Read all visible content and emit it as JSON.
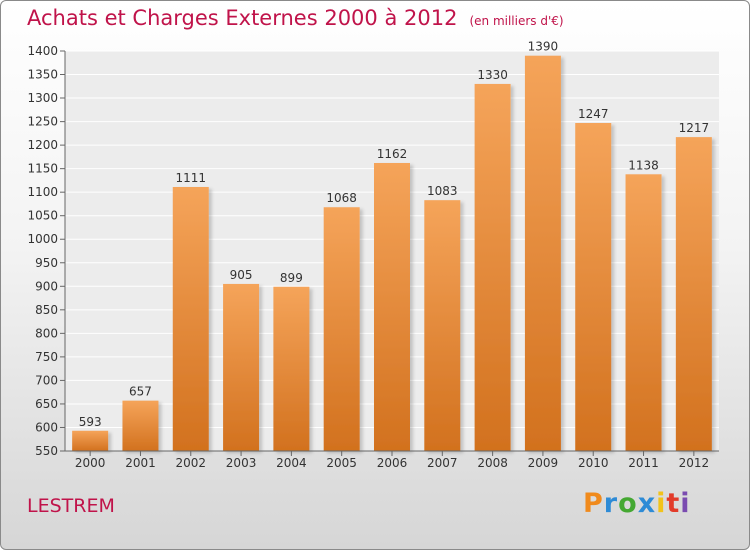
{
  "chart_data": {
    "type": "bar",
    "title": "Achats et Charges Externes 2000 à 2012",
    "subtitle": "(en milliers d'€)",
    "categories": [
      "2000",
      "2001",
      "2002",
      "2003",
      "2004",
      "2005",
      "2006",
      "2007",
      "2008",
      "2009",
      "2010",
      "2011",
      "2012"
    ],
    "values": [
      593,
      657,
      1111,
      905,
      899,
      1068,
      1162,
      1083,
      1330,
      1390,
      1247,
      1138,
      1217
    ],
    "ylim": [
      550,
      1400
    ],
    "yticks": [
      550,
      600,
      650,
      700,
      750,
      800,
      850,
      900,
      950,
      1000,
      1050,
      1100,
      1150,
      1200,
      1250,
      1300,
      1350,
      1400
    ],
    "xlabel": "",
    "ylabel": "",
    "grid": true,
    "bar_color": "#f0913a",
    "bar_color_dark": "#d97320"
  },
  "footer": {
    "commune": "LESTREM",
    "logo_letters": [
      "P",
      "r",
      "o",
      "x",
      "i",
      "t",
      "i"
    ],
    "logo_colors": [
      "#f08a1c",
      "#2e8bd6",
      "#45a832",
      "#2e8bd6",
      "#f2c31a",
      "#e23b2a",
      "#7a4bb0"
    ]
  }
}
